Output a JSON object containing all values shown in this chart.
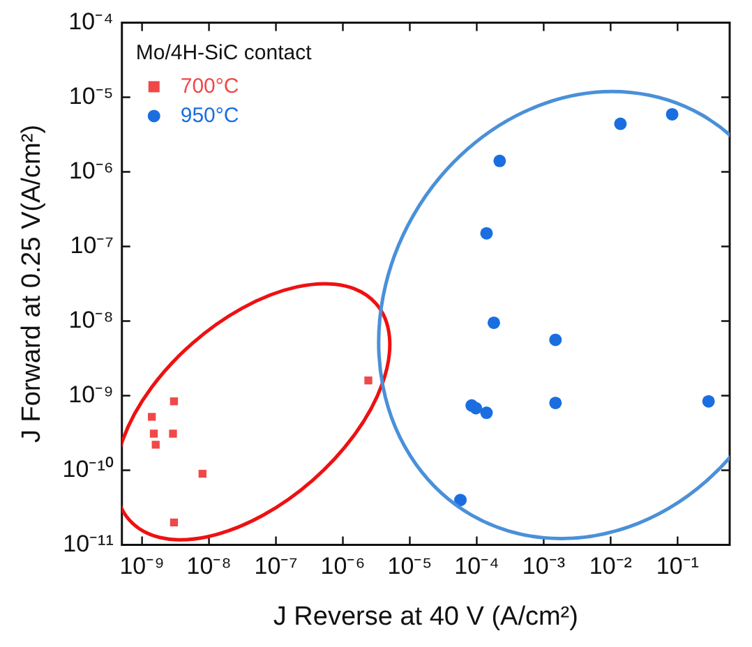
{
  "chart_data": {
    "type": "scatter",
    "xlabel": "J Reverse at 40 V (A/cm²)",
    "ylabel": "J Forward at 0.25 V(A/cm²)",
    "legend_title": "Mo/4H-SiC contact",
    "legend": "top left",
    "log": "xy",
    "grid": false,
    "xlim": [
      5e-10,
      0.6
    ],
    "ylim": [
      1e-11,
      0.0001
    ],
    "xticks": [
      {
        "value": 1e-09,
        "label": "10⁻⁹"
      },
      {
        "value": 1e-08,
        "label": "10⁻⁸"
      },
      {
        "value": 1e-07,
        "label": "10⁻⁷"
      },
      {
        "value": 1e-06,
        "label": "10⁻⁶"
      },
      {
        "value": 1e-05,
        "label": "10⁻⁵"
      },
      {
        "value": 0.0001,
        "label": "10⁻⁴"
      },
      {
        "value": 0.001,
        "label": "10⁻³"
      },
      {
        "value": 0.01,
        "label": "10⁻²"
      },
      {
        "value": 0.1,
        "label": "10⁻¹"
      }
    ],
    "yticks": [
      {
        "value": 1e-11,
        "label": "10⁻¹¹"
      },
      {
        "value": 1e-10,
        "label": "10⁻¹⁰"
      },
      {
        "value": 1e-09,
        "label": "10⁻⁹"
      },
      {
        "value": 1e-08,
        "label": "10⁻⁸"
      },
      {
        "value": 1e-07,
        "label": "10⁻⁷"
      },
      {
        "value": 1e-06,
        "label": "10⁻⁶"
      },
      {
        "value": 1e-05,
        "label": "10⁻⁵"
      },
      {
        "value": 0.0001,
        "label": "10⁻⁴"
      }
    ],
    "series": [
      {
        "name": "700°C",
        "color": "#f04848",
        "marker": "square",
        "x": [
          1.4e-09,
          1.5e-09,
          1.6e-09,
          3e-09,
          2.9e-09,
          8e-09,
          3e-09,
          2.4e-06
        ],
        "values": [
          5.2e-10,
          3.1e-10,
          2.2e-10,
          8.4e-10,
          3.1e-10,
          9e-11,
          2e-11,
          1.6e-09
        ]
      },
      {
        "name": "950°C",
        "color": "#1a6ee0",
        "marker": "circle",
        "x": [
          0.00022,
          0.00014,
          0.00018,
          0.014,
          0.083,
          0.0015,
          0.0015,
          8.4e-05,
          9.7e-05,
          0.00014,
          5.7e-05,
          0.29
        ],
        "values": [
          1.4e-06,
          1.5e-07,
          9.5e-09,
          4.4e-06,
          5.9e-06,
          5.6e-09,
          8e-10,
          7.4e-10,
          6.8e-10,
          5.9e-10,
          4e-11,
          8.4e-10
        ]
      }
    ]
  }
}
